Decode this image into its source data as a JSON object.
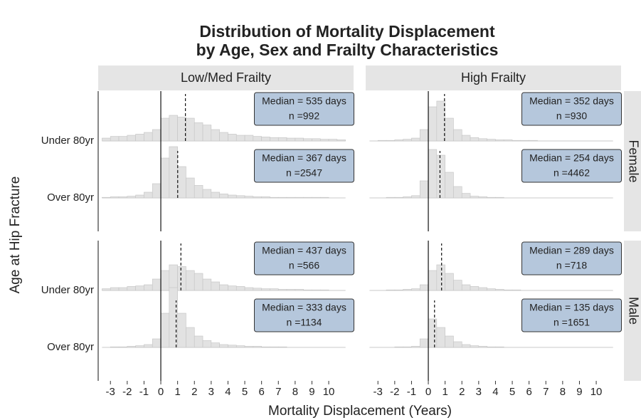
{
  "chart_data": {
    "type": "ridgeline-histogram",
    "title": [
      "Distribution of Mortality Displacement",
      "by Age, Sex and Frailty Characteristics"
    ],
    "x_label": "Mortality Displacement (Years)",
    "y_label": "Age at Hip Fracture",
    "columns": [
      "Low/Med Frailty",
      "High Frailty"
    ],
    "rows": [
      "Female",
      "Male"
    ],
    "categories": [
      "Under 80yr",
      "Over 80yr"
    ],
    "xlim": [
      -3.73,
      11.48
    ],
    "xticks": [
      -3,
      -2,
      -1,
      0,
      1,
      2,
      3,
      4,
      5,
      6,
      7,
      8,
      9,
      10
    ],
    "bins": [
      -3.5,
      -3,
      -2.5,
      -2,
      -1.5,
      -1,
      -0.5,
      0,
      0.5,
      1,
      1.5,
      2,
      2.5,
      3,
      3.5,
      4,
      4.5,
      5,
      5.5,
      6,
      6.5,
      7,
      7.5,
      8,
      8.5,
      9,
      9.5,
      10,
      10.5,
      11
    ],
    "fill": "#e2e2e2",
    "box_color": "#b5c7dc",
    "facets": [
      [
        {
          "ridges": [
            {
              "median_label": "Median = 535 days",
              "n_label": "n =992",
              "median": 1.465,
              "values": [
                0.05,
                0.08,
                0.08,
                0.1,
                0.12,
                0.15,
                0.2,
                0.4,
                0.45,
                0.42,
                0.4,
                0.32,
                0.28,
                0.2,
                0.15,
                0.12,
                0.1,
                0.1,
                0.08,
                0.07,
                0.06,
                0.06,
                0.05,
                0.05,
                0.04,
                0.04,
                0.03,
                0.03,
                0.02
              ]
            },
            {
              "median_label": "Median = 367 days",
              "n_label": "n =2547",
              "median": 1.005,
              "values": [
                0.01,
                0.02,
                0.02,
                0.03,
                0.05,
                0.1,
                0.25,
                0.7,
                0.9,
                0.55,
                0.35,
                0.22,
                0.15,
                0.1,
                0.07,
                0.05,
                0.04,
                0.03,
                0.02,
                0.02,
                0.01,
                0.01,
                0.01,
                0.01,
                0.01,
                0.01,
                0.01,
                0,
                0
              ]
            }
          ]
        },
        {
          "ridges": [
            {
              "median_label": "Median = 352 days",
              "n_label": "n =930",
              "median": 0.964,
              "values": [
                0,
                0.01,
                0.01,
                0.02,
                0.03,
                0.05,
                0.2,
                0.6,
                0.7,
                0.4,
                0.2,
                0.1,
                0.06,
                0.04,
                0.03,
                0.02,
                0.02,
                0.01,
                0.01,
                0.01,
                0,
                0,
                0,
                0,
                0,
                0,
                0,
                0,
                0
              ]
            },
            {
              "median_label": "Median = 254 days",
              "n_label": "n =4462",
              "median": 0.695,
              "values": [
                0,
                0,
                0.01,
                0.01,
                0.02,
                0.04,
                0.3,
                0.85,
                0.75,
                0.45,
                0.2,
                0.08,
                0.03,
                0.02,
                0.01,
                0.01,
                0,
                0,
                0,
                0,
                0,
                0,
                0,
                0,
                0,
                0,
                0,
                0,
                0
              ]
            }
          ]
        }
      ],
      [
        {
          "ridges": [
            {
              "median_label": "Median = 437 days",
              "n_label": "n =566",
              "median": 1.196,
              "values": [
                0.03,
                0.05,
                0.05,
                0.07,
                0.08,
                0.1,
                0.2,
                0.35,
                0.45,
                0.42,
                0.35,
                0.3,
                0.2,
                0.15,
                0.1,
                0.08,
                0.07,
                0.05,
                0.04,
                0.03,
                0.03,
                0.02,
                0.02,
                0.02,
                0.01,
                0.01,
                0.01,
                0,
                0
              ]
            },
            {
              "median_label": "Median = 333 days",
              "n_label": "n =1134",
              "median": 0.912,
              "values": [
                0,
                0.01,
                0.01,
                0.02,
                0.03,
                0.05,
                0.15,
                0.6,
                1.05,
                0.6,
                0.35,
                0.2,
                0.12,
                0.08,
                0.05,
                0.04,
                0.03,
                0.02,
                0.02,
                0.01,
                0.01,
                0.01,
                0,
                0,
                0,
                0,
                0,
                0,
                0
              ]
            }
          ]
        },
        {
          "ridges": [
            {
              "median_label": "Median = 289 days",
              "n_label": "n =718",
              "median": 0.791,
              "values": [
                0,
                0,
                0.01,
                0.01,
                0.02,
                0.03,
                0.1,
                0.35,
                0.45,
                0.3,
                0.18,
                0.1,
                0.07,
                0.05,
                0.03,
                0.02,
                0.01,
                0.01,
                0,
                0,
                0,
                0,
                0,
                0,
                0,
                0,
                0,
                0,
                0
              ]
            },
            {
              "median_label": "Median = 135 days",
              "n_label": "n =1651",
              "median": 0.37,
              "values": [
                0,
                0,
                0,
                0.01,
                0.01,
                0.02,
                0.15,
                0.5,
                0.35,
                0.2,
                0.1,
                0.05,
                0.03,
                0.02,
                0.01,
                0.01,
                0,
                0,
                0,
                0,
                0,
                0,
                0,
                0,
                0,
                0,
                0,
                0,
                0
              ]
            }
          ]
        }
      ]
    ]
  }
}
